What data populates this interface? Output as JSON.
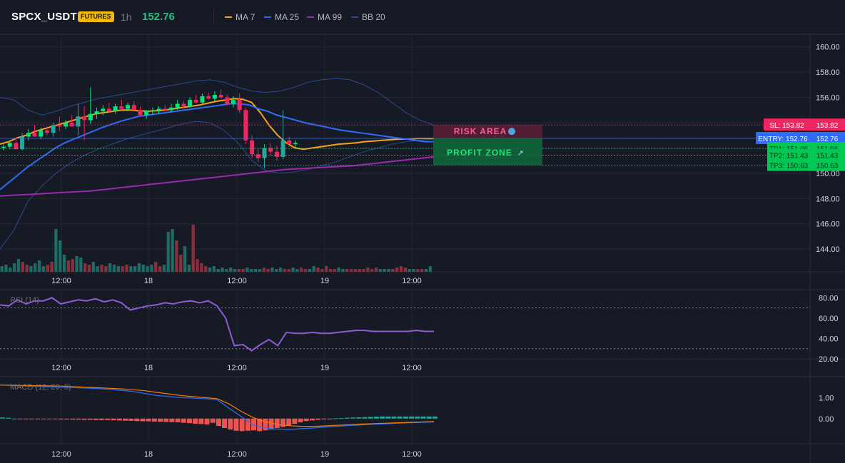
{
  "header": {
    "symbol": "SPCX_USDT",
    "badge": "FUTURES",
    "timeframe": "1h",
    "last_price": "152.76",
    "legend": [
      {
        "label": "MA 7",
        "color": "#f7a21b"
      },
      {
        "label": "MA 25",
        "color": "#2f6cf5"
      },
      {
        "label": "MA 99",
        "color": "#9c27b0"
      },
      {
        "label": "BB 20",
        "color": "#2a4a8c"
      }
    ]
  },
  "colors": {
    "background": "#161a25",
    "grid": "#232734",
    "up": "#26a69a",
    "up_bright": "#00e676",
    "down": "#f0245f",
    "ma7": "#f7a21b",
    "ma25": "#2f6cf5",
    "ma99": "#9c27b0",
    "bb": "#2a4a8c",
    "rsi": "#8e5bd4",
    "macd": "#2f6cf5",
    "signal": "#f57c00",
    "hist_pos": "#26a69a",
    "hist_neg": "#ef5350"
  },
  "time_axis": {
    "labels": [
      "12:00",
      "18",
      "12:00",
      "19",
      "12:00"
    ]
  },
  "annotations": {
    "risk_label": "RISK AREA",
    "profit_label": "PROFIT ZONE",
    "levels": [
      {
        "label": "SL: 153.82",
        "price": 153.82,
        "color": "#f0245f"
      },
      {
        "label": "ENTRY: 152.76",
        "price": 152.76,
        "color": "#2f6cf5"
      },
      {
        "label": "TP1: 151.96",
        "price": 151.96,
        "color": "#00c853"
      },
      {
        "label": "TP2: 151.43",
        "price": 151.43,
        "color": "#00c853"
      },
      {
        "label": "TP3: 150.63",
        "price": 150.63,
        "color": "#00c853"
      }
    ],
    "axis_values": [
      "153.82",
      "152.76",
      "151.96",
      "151.43",
      "150.63"
    ]
  },
  "chart_data": [
    {
      "type": "candlestick",
      "title": "",
      "y_ticks": [
        "160.00",
        "158.00",
        "156.00",
        "154.00",
        "152.00",
        "150.00",
        "148.00",
        "146.00",
        "144.00"
      ],
      "ylim": [
        142.2,
        161.0
      ],
      "series": [
        {
          "name": "MA 7",
          "values": [
            152.3,
            152.5,
            152.8,
            153.0,
            153.3,
            153.5,
            153.7,
            153.9,
            154.1,
            154.3,
            154.5,
            154.7,
            154.8,
            154.9,
            155.0,
            155.0,
            154.95,
            154.9,
            154.95,
            155.0,
            155.1,
            155.2,
            155.3,
            155.4,
            155.55,
            155.7,
            155.8,
            155.9,
            155.85,
            155.6,
            154.8,
            153.8,
            153.0,
            152.4,
            152.0,
            151.9,
            152.0,
            152.1,
            152.2,
            152.3,
            152.35,
            152.4,
            152.5,
            152.55,
            152.6,
            152.65,
            152.7,
            152.7,
            152.75,
            152.75,
            152.76
          ]
        },
        {
          "name": "MA 25",
          "values": [
            148.7,
            149.3,
            149.9,
            150.5,
            151.0,
            151.5,
            152.0,
            152.4,
            152.7,
            153.0,
            153.3,
            153.6,
            153.85,
            154.1,
            154.3,
            154.5,
            154.6,
            154.7,
            154.8,
            154.9,
            155.0,
            155.1,
            155.2,
            155.3,
            155.4,
            155.5,
            155.5,
            155.4,
            155.1,
            154.9,
            154.6,
            154.4,
            154.2,
            154.0,
            153.85,
            153.7,
            153.55,
            153.4,
            153.3,
            153.2,
            153.1,
            153.0,
            152.9,
            152.8,
            152.7,
            152.6,
            152.5,
            152.5
          ]
        },
        {
          "name": "MA 99",
          "values": [
            148.2,
            148.25,
            148.3,
            148.35,
            148.4,
            148.45,
            148.5,
            148.55,
            148.6,
            148.7,
            148.8,
            148.9,
            149.0,
            149.1,
            149.2,
            149.3,
            149.4,
            149.5,
            149.6,
            149.7,
            149.8,
            149.9,
            150.0,
            150.1,
            150.2,
            150.3,
            150.35,
            150.4,
            150.45,
            150.5,
            150.55,
            150.6,
            150.7,
            150.8,
            150.9,
            151.0,
            151.1,
            151.2,
            151.3
          ]
        },
        {
          "name": "BB 20",
          "values": []
        }
      ],
      "candles": [
        {
          "o": 152.0,
          "h": 152.3,
          "l": 151.8,
          "c": 152.1
        },
        {
          "o": 152.1,
          "h": 152.6,
          "l": 151.9,
          "c": 152.4
        },
        {
          "o": 152.4,
          "h": 152.8,
          "l": 152.0,
          "c": 151.9
        },
        {
          "o": 151.9,
          "h": 153.2,
          "l": 151.8,
          "c": 152.9
        },
        {
          "o": 152.9,
          "h": 153.5,
          "l": 152.6,
          "c": 153.2
        },
        {
          "o": 153.2,
          "h": 153.8,
          "l": 152.9,
          "c": 152.9
        },
        {
          "o": 152.9,
          "h": 153.6,
          "l": 152.7,
          "c": 153.4
        },
        {
          "o": 153.4,
          "h": 153.7,
          "l": 153.0,
          "c": 153.2
        },
        {
          "o": 153.2,
          "h": 154.0,
          "l": 152.9,
          "c": 153.8
        },
        {
          "o": 153.8,
          "h": 154.5,
          "l": 153.3,
          "c": 153.7
        },
        {
          "o": 153.7,
          "h": 154.2,
          "l": 153.5,
          "c": 154.0
        },
        {
          "o": 154.0,
          "h": 154.6,
          "l": 153.8,
          "c": 153.7
        },
        {
          "o": 153.7,
          "h": 155.5,
          "l": 153.0,
          "c": 154.5
        },
        {
          "o": 154.5,
          "h": 155.3,
          "l": 152.6,
          "c": 154.2
        },
        {
          "o": 154.2,
          "h": 156.8,
          "l": 153.9,
          "c": 154.7
        },
        {
          "o": 154.7,
          "h": 155.2,
          "l": 154.3,
          "c": 154.9
        },
        {
          "o": 154.9,
          "h": 155.4,
          "l": 154.6,
          "c": 155.1
        },
        {
          "o": 155.1,
          "h": 155.6,
          "l": 154.8,
          "c": 154.9
        },
        {
          "o": 154.9,
          "h": 155.5,
          "l": 154.7,
          "c": 155.3
        },
        {
          "o": 155.3,
          "h": 155.8,
          "l": 155.0,
          "c": 155.1
        },
        {
          "o": 155.1,
          "h": 155.6,
          "l": 154.9,
          "c": 155.4
        },
        {
          "o": 155.4,
          "h": 155.7,
          "l": 155.0,
          "c": 155.0
        },
        {
          "o": 155.0,
          "h": 155.3,
          "l": 154.5,
          "c": 154.6
        },
        {
          "o": 154.6,
          "h": 155.0,
          "l": 154.3,
          "c": 154.9
        },
        {
          "o": 154.9,
          "h": 155.2,
          "l": 154.6,
          "c": 155.0
        },
        {
          "o": 155.0,
          "h": 155.3,
          "l": 154.7,
          "c": 155.1
        },
        {
          "o": 155.1,
          "h": 155.4,
          "l": 154.9,
          "c": 155.0
        },
        {
          "o": 155.0,
          "h": 155.5,
          "l": 154.8,
          "c": 155.2
        },
        {
          "o": 155.2,
          "h": 155.8,
          "l": 155.0,
          "c": 155.5
        },
        {
          "o": 155.5,
          "h": 155.7,
          "l": 155.1,
          "c": 155.3
        },
        {
          "o": 155.3,
          "h": 156.0,
          "l": 155.2,
          "c": 155.8
        },
        {
          "o": 155.8,
          "h": 156.2,
          "l": 155.5,
          "c": 155.6
        },
        {
          "o": 155.6,
          "h": 156.3,
          "l": 155.4,
          "c": 156.1
        },
        {
          "o": 156.1,
          "h": 156.4,
          "l": 155.8,
          "c": 155.9
        },
        {
          "o": 155.9,
          "h": 156.5,
          "l": 155.7,
          "c": 156.2
        },
        {
          "o": 156.2,
          "h": 156.6,
          "l": 155.9,
          "c": 156.0
        },
        {
          "o": 156.0,
          "h": 156.2,
          "l": 155.4,
          "c": 155.5
        },
        {
          "o": 155.5,
          "h": 156.1,
          "l": 155.2,
          "c": 155.8
        },
        {
          "o": 155.8,
          "h": 156.3,
          "l": 154.8,
          "c": 155.0
        },
        {
          "o": 155.0,
          "h": 155.2,
          "l": 152.3,
          "c": 152.6
        },
        {
          "o": 152.6,
          "h": 153.0,
          "l": 151.2,
          "c": 151.5
        },
        {
          "o": 151.5,
          "h": 151.9,
          "l": 150.9,
          "c": 151.2
        },
        {
          "o": 151.2,
          "h": 152.3,
          "l": 150.4,
          "c": 152.0
        },
        {
          "o": 152.0,
          "h": 152.4,
          "l": 151.4,
          "c": 151.7
        },
        {
          "o": 151.7,
          "h": 152.2,
          "l": 151.0,
          "c": 151.3
        },
        {
          "o": 151.3,
          "h": 155.0,
          "l": 151.1,
          "c": 152.6
        },
        {
          "o": 152.6,
          "h": 152.9,
          "l": 152.1,
          "c": 152.3
        },
        {
          "o": 152.3,
          "h": 152.6,
          "l": 152.0,
          "c": 152.4
        }
      ],
      "volume": [
        4,
        5,
        3,
        6,
        9,
        7,
        5,
        4,
        6,
        8,
        4,
        5,
        7,
        30,
        22,
        12,
        8,
        9,
        11,
        10,
        6,
        5,
        7,
        4,
        5,
        4,
        6,
        5,
        4,
        4,
        5,
        4,
        4,
        6,
        5,
        4,
        5,
        7,
        4,
        5,
        28,
        30,
        22,
        12,
        18,
        5,
        33,
        9,
        6,
        4,
        3,
        4,
        2,
        3,
        2,
        3,
        2,
        2,
        2,
        3,
        2,
        2,
        2,
        3,
        2,
        3,
        2,
        3,
        2,
        2,
        3,
        2,
        3,
        2,
        2,
        4,
        3,
        2,
        4,
        2,
        2,
        3,
        2,
        2,
        2,
        2,
        2,
        2,
        3,
        2,
        3,
        2,
        2,
        2,
        2,
        3,
        4,
        3,
        2,
        2,
        2,
        2,
        2,
        4
      ]
    },
    {
      "type": "line",
      "title": "RSI (14)",
      "y_ticks": [
        "80.00",
        "60.00",
        "40.00",
        "20.00"
      ],
      "ylim": [
        20,
        88
      ],
      "series": [
        {
          "name": "RSI (14)",
          "values": [
            73,
            72,
            78,
            74,
            77,
            77,
            80,
            74,
            76,
            78,
            77,
            79,
            76,
            78,
            75,
            68,
            70,
            72,
            73,
            75,
            74,
            76,
            77,
            75,
            77,
            72,
            60,
            33,
            34,
            28,
            34,
            39,
            33,
            46,
            45,
            45,
            46,
            45,
            45,
            46,
            47,
            48,
            48,
            47,
            47,
            47,
            47,
            47,
            48,
            47,
            47
          ]
        }
      ],
      "levels": [
        70,
        30
      ]
    },
    {
      "type": "bar",
      "title": "MACD (12, 26, 9)",
      "y_ticks": [
        "1.00",
        "0.00"
      ],
      "ylim": [
        -1.2,
        2.0
      ],
      "series": [
        {
          "name": "MACD",
          "values": [
            1.6,
            1.58,
            1.55,
            1.53,
            1.52,
            1.5,
            1.48,
            1.46,
            1.44,
            1.4,
            1.35,
            1.3,
            1.2,
            1.1,
            1.05,
            1.0,
            0.98,
            0.95,
            0.9,
            0.5,
            0.1,
            -0.3,
            -0.45,
            -0.5,
            -0.52,
            -0.48,
            -0.45,
            -0.4,
            -0.37,
            -0.33,
            -0.3,
            -0.27,
            -0.25,
            -0.22,
            -0.2,
            -0.18,
            -0.16
          ]
        },
        {
          "name": "Signal",
          "values": [
            1.6,
            1.59,
            1.58,
            1.57,
            1.56,
            1.55,
            1.53,
            1.5,
            1.48,
            1.45,
            1.42,
            1.38,
            1.33,
            1.25,
            1.18,
            1.1,
            1.05,
            1.0,
            0.95,
            0.7,
            0.35,
            0.05,
            -0.15,
            -0.28,
            -0.34,
            -0.37,
            -0.37,
            -0.35,
            -0.32,
            -0.29,
            -0.26,
            -0.24,
            -0.22,
            -0.2,
            -0.18,
            -0.16,
            -0.14
          ]
        },
        {
          "name": "Histogram",
          "values": [
            0.05,
            0.04,
            0.0,
            -0.01,
            -0.01,
            -0.02,
            -0.02,
            -0.03,
            -0.03,
            -0.03,
            -0.04,
            -0.04,
            -0.05,
            -0.05,
            -0.06,
            -0.06,
            -0.07,
            -0.07,
            -0.07,
            -0.08,
            -0.09,
            -0.1,
            -0.11,
            -0.12,
            -0.13,
            -0.13,
            -0.14,
            -0.15,
            -0.16,
            -0.17,
            -0.18,
            -0.2,
            -0.22,
            -0.25,
            -0.26,
            -0.28,
            -0.2,
            -0.35,
            -0.45,
            -0.52,
            -0.58,
            -0.6,
            -0.58,
            -0.56,
            -0.6,
            -0.56,
            -0.52,
            -0.45,
            -0.4,
            -0.32,
            -0.25,
            -0.18,
            -0.12,
            -0.09,
            -0.06,
            -0.04,
            -0.02,
            0.01,
            0.02,
            0.04,
            0.05,
            0.06,
            0.07,
            0.08,
            0.09,
            0.1,
            0.1,
            0.1,
            0.1,
            0.1,
            0.1,
            0.1,
            0.1,
            0.1,
            0.1
          ]
        }
      ]
    }
  ]
}
